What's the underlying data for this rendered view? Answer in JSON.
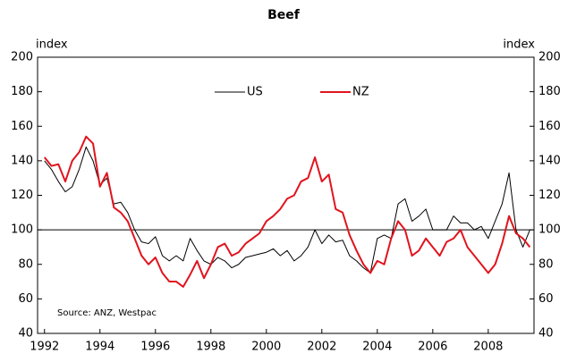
{
  "chart_data": {
    "type": "line",
    "title": "Beef",
    "y_label": "index",
    "y2_label": "index",
    "source": "Source:  ANZ, Westpac",
    "x": [
      1992.0,
      1992.25,
      1992.5,
      1992.75,
      1993.0,
      1993.25,
      1993.5,
      1993.75,
      1994.0,
      1994.25,
      1994.5,
      1994.75,
      1995.0,
      1995.25,
      1995.5,
      1995.75,
      1996.0,
      1996.25,
      1996.5,
      1996.75,
      1997.0,
      1997.25,
      1997.5,
      1997.75,
      1998.0,
      1998.25,
      1998.5,
      1998.75,
      1999.0,
      1999.25,
      1999.5,
      1999.75,
      2000.0,
      2000.25,
      2000.5,
      2000.75,
      2001.0,
      2001.25,
      2001.5,
      2001.75,
      2002.0,
      2002.25,
      2002.5,
      2002.75,
      2003.0,
      2003.25,
      2003.5,
      2003.75,
      2004.0,
      2004.25,
      2004.5,
      2004.75,
      2005.0,
      2005.25,
      2005.5,
      2005.75,
      2006.0,
      2006.25,
      2006.5,
      2006.75,
      2007.0,
      2007.25,
      2007.5,
      2007.75,
      2008.0,
      2008.25,
      2008.5,
      2008.75,
      2009.0,
      2009.25,
      2009.5
    ],
    "series": [
      {
        "name": "US",
        "color": "#000000",
        "values": [
          140,
          135,
          128,
          122,
          125,
          135,
          148,
          140,
          126,
          130,
          115,
          116,
          110,
          100,
          93,
          92,
          96,
          85,
          82,
          85,
          82,
          95,
          88,
          82,
          80,
          84,
          82,
          78,
          80,
          84,
          85,
          86,
          87,
          89,
          85,
          88,
          82,
          85,
          90,
          100,
          92,
          97,
          93,
          94,
          85,
          82,
          78,
          75,
          95,
          97,
          95,
          115,
          118,
          105,
          108,
          112,
          100,
          100,
          100,
          108,
          104,
          104,
          100,
          102,
          95,
          105,
          115,
          133,
          100,
          90,
          100
        ]
      },
      {
        "name": "NZ",
        "color": "#e0141e",
        "values": [
          142,
          137,
          138,
          128,
          140,
          145,
          154,
          150,
          125,
          133,
          113,
          110,
          105,
          95,
          85,
          80,
          84,
          75,
          70,
          70,
          67,
          74,
          82,
          72,
          80,
          90,
          92,
          85,
          87,
          92,
          95,
          98,
          105,
          108,
          112,
          118,
          120,
          128,
          130,
          142,
          128,
          132,
          112,
          110,
          97,
          88,
          80,
          75,
          82,
          80,
          95,
          105,
          100,
          85,
          88,
          95,
          90,
          85,
          93,
          95,
          100,
          90,
          85,
          80,
          75,
          80,
          92,
          108,
          98,
          95,
          90
        ]
      }
    ],
    "xlim": [
      1991.75,
      2009.65
    ],
    "xticks": [
      1992,
      1994,
      1996,
      1998,
      2000,
      2002,
      2004,
      2006,
      2008
    ],
    "ylim": [
      40,
      200
    ],
    "yticks": [
      40,
      60,
      80,
      100,
      120,
      140,
      160,
      180,
      200
    ],
    "y2lim": [
      40,
      200
    ],
    "y2ticks": [
      40,
      60,
      80,
      100,
      120,
      140,
      160,
      180,
      200
    ],
    "reference_line": 100,
    "legend": "top"
  }
}
